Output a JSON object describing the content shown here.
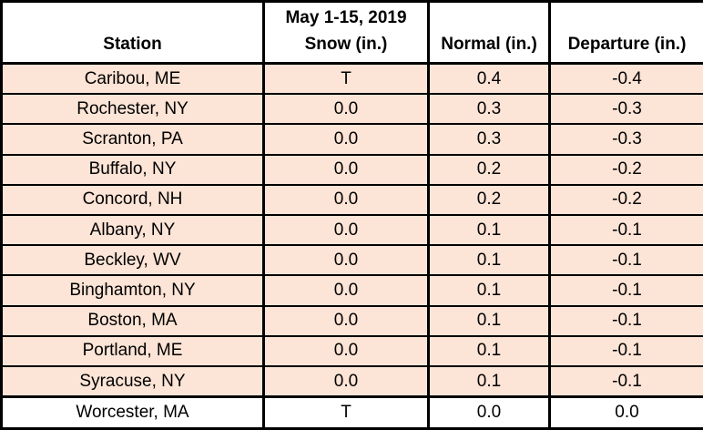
{
  "title": "May 1-15, 2019 snowfall departures table",
  "colors": {
    "row-bg": "#fce4d6",
    "plain-row-bg": "#ffffff",
    "header-bg": "#ffffff",
    "border": "#000000",
    "text": "#000000"
  },
  "header": {
    "station": "Station",
    "snow_line1": "May 1-15, 2019",
    "snow_line2": "Snow (in.)",
    "normal": "Normal (in.)",
    "departure": "Departure (in.)"
  },
  "chart_data": {
    "type": "table",
    "columns": [
      "Station",
      "May 1-15, 2019 Snow (in.)",
      "Normal (in.)",
      "Departure (in.)"
    ],
    "rows": [
      [
        "Caribou, ME",
        "T",
        "0.4",
        "-0.4"
      ],
      [
        "Rochester, NY",
        "0.0",
        "0.3",
        "-0.3"
      ],
      [
        "Scranton, PA",
        "0.0",
        "0.3",
        "-0.3"
      ],
      [
        "Buffalo, NY",
        "0.0",
        "0.2",
        "-0.2"
      ],
      [
        "Concord, NH",
        "0.0",
        "0.2",
        "-0.2"
      ],
      [
        "Albany, NY",
        "0.0",
        "0.1",
        "-0.1"
      ],
      [
        "Beckley, WV",
        "0.0",
        "0.1",
        "-0.1"
      ],
      [
        "Binghamton, NY",
        "0.0",
        "0.1",
        "-0.1"
      ],
      [
        "Boston, MA",
        "0.0",
        "0.1",
        "-0.1"
      ],
      [
        "Portland, ME",
        "0.0",
        "0.1",
        "-0.1"
      ],
      [
        "Syracuse, NY",
        "0.0",
        "0.1",
        "-0.1"
      ],
      [
        "Worcester, MA",
        "T",
        "0.0",
        "0.0"
      ]
    ],
    "layout": {
      "shaded_rows": [
        0,
        1,
        2,
        3,
        4,
        5,
        6,
        7,
        8,
        9,
        10
      ],
      "unshaded_rows": [
        11
      ],
      "grid": true,
      "header_position": "top"
    }
  }
}
